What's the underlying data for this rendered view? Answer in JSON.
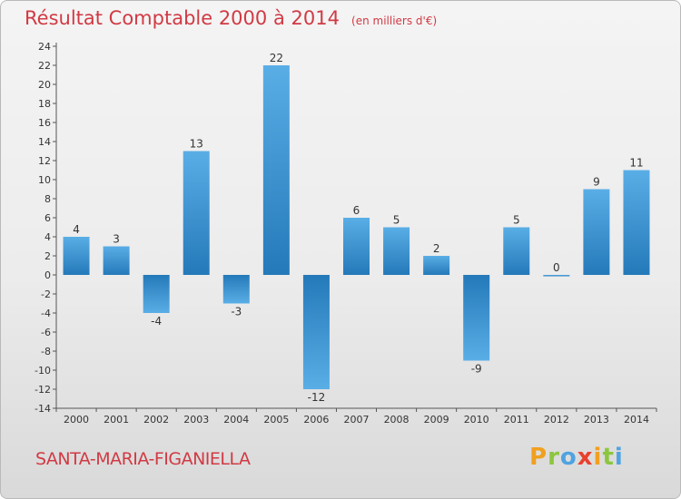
{
  "chart_data": {
    "type": "bar",
    "title": "Résultat Comptable 2000 à 2014",
    "subtitle": "(en milliers d'€)",
    "categories": [
      "2000",
      "2001",
      "2002",
      "2003",
      "2004",
      "2005",
      "2006",
      "2007",
      "2008",
      "2009",
      "2010",
      "2011",
      "2012",
      "2013",
      "2014"
    ],
    "values": [
      4,
      3,
      -4,
      13,
      -3,
      22,
      -12,
      6,
      5,
      2,
      -9,
      5,
      0,
      9,
      11
    ],
    "value_labels": [
      "4",
      "3",
      "-4",
      "13",
      "-3",
      "22",
      "-12",
      "6",
      "5",
      "2",
      "-9",
      "5",
      "0",
      "9",
      "11"
    ],
    "ylim": [
      -14,
      24
    ],
    "yticks": [
      "-14",
      "-12",
      "-10",
      "-8",
      "-6",
      "-4",
      "-2",
      "0",
      "2",
      "4",
      "6",
      "8",
      "10",
      "12",
      "14",
      "16",
      "18",
      "20",
      "22",
      "24"
    ],
    "grid": false,
    "colors": {
      "bar_light": "#5aaee6",
      "bar_dark": "#2479b9",
      "title": "#d13a44"
    }
  },
  "footer": {
    "commune": "SANTA-MARIA-FIGANIELLA",
    "logo_letters": [
      "P",
      "r",
      "o",
      "x",
      "i",
      "t",
      "i"
    ],
    "logo_colors": [
      "#f0a020",
      "#8cc63f",
      "#4fa3e0",
      "#e8412e",
      "#f0a020",
      "#8cc63f",
      "#4fa3e0"
    ]
  }
}
